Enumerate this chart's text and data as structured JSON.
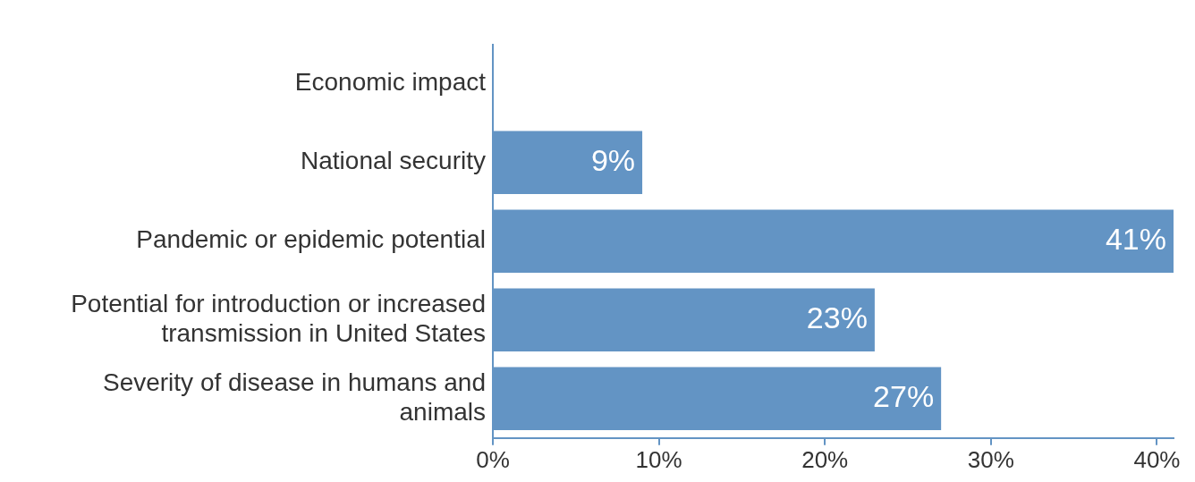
{
  "chart_data": {
    "type": "bar",
    "orientation": "horizontal",
    "categories": [
      "Economic impact",
      "National security",
      "Pandemic or epidemic potential",
      "Potential for introduction or increased transmission in United States",
      "Severity of disease in humans and animals"
    ],
    "values": [
      null,
      9,
      41,
      23,
      27
    ],
    "value_labels": [
      null,
      "9%",
      "41%",
      "23%",
      "27%"
    ],
    "color": "#6394c4",
    "xlim": [
      0,
      41
    ],
    "xticks": [
      {
        "value": 0,
        "label": "0%"
      },
      {
        "value": 10,
        "label": "10%"
      },
      {
        "value": 20,
        "label": "20%"
      },
      {
        "value": 30,
        "label": "30%"
      },
      {
        "value": 40,
        "label": "40%"
      }
    ],
    "grid": false,
    "legend": false
  }
}
